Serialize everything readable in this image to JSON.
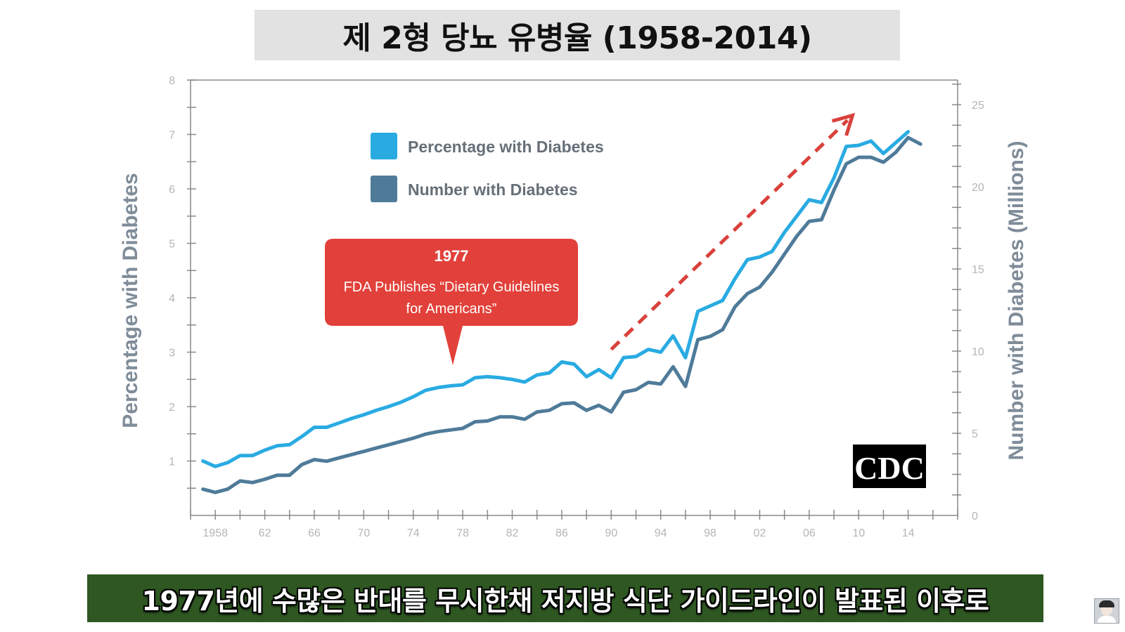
{
  "title": "제 2형 당뇨 유병율 (1958-2014)",
  "subtitle": "1977년에 수많은 반대를 무시한채 저지방 식단 가이드라인이 발표된 이후로",
  "colors": {
    "percentage_series": "#29abe2",
    "number_series": "#4f7b99",
    "callout": "#e2403a",
    "trend_arrow": "#d9413b",
    "title_banner": "#e2e2e2",
    "subtitle_bar": "#2e5722"
  },
  "logo": {
    "text": "CDC"
  },
  "chart_data": {
    "type": "line",
    "title": "",
    "xlabel": "",
    "ylabel_left": "Percentage with Diabetes",
    "ylabel_right": "Number with Diabetes (Millions)",
    "ylim_left": [
      0,
      8
    ],
    "ylim_right": [
      0,
      26.5
    ],
    "left_ticks": [
      1,
      2,
      3,
      4,
      5,
      6,
      7,
      8
    ],
    "right_ticks": [
      0,
      5,
      10,
      15,
      20,
      25
    ],
    "x_ticks": [
      {
        "value": 1958,
        "label": "1958"
      },
      {
        "value": 1962,
        "label": "62"
      },
      {
        "value": 1966,
        "label": "66"
      },
      {
        "value": 1970,
        "label": "70"
      },
      {
        "value": 1974,
        "label": "74"
      },
      {
        "value": 1978,
        "label": "78"
      },
      {
        "value": 1982,
        "label": "82"
      },
      {
        "value": 1986,
        "label": "86"
      },
      {
        "value": 1990,
        "label": "90"
      },
      {
        "value": 1994,
        "label": "94"
      },
      {
        "value": 1998,
        "label": "98"
      },
      {
        "value": 2002,
        "label": "02"
      },
      {
        "value": 2006,
        "label": "06"
      },
      {
        "value": 2010,
        "label": "10"
      },
      {
        "value": 2014,
        "label": "14"
      }
    ],
    "xlim": [
      1956,
      2018
    ],
    "grid": false,
    "legend_position": "top-left",
    "series": [
      {
        "name": "Percentage with Diabetes",
        "axis": "left",
        "x": [
          1957,
          1958,
          1959,
          1960,
          1961,
          1962,
          1963,
          1964,
          1965,
          1966,
          1967,
          1968,
          1969,
          1970,
          1971,
          1972,
          1973,
          1974,
          1975,
          1976,
          1977,
          1978,
          1979,
          1980,
          1981,
          1982,
          1983,
          1984,
          1985,
          1986,
          1987,
          1988,
          1989,
          1990,
          1991,
          1992,
          1993,
          1994,
          1995,
          1996,
          1997,
          1998,
          1999,
          2000,
          2001,
          2002,
          2003,
          2004,
          2005,
          2006,
          2007,
          2008,
          2009,
          2010,
          2011,
          2012,
          2013,
          2014,
          2015
        ],
        "values": [
          1.0,
          0.9,
          0.97,
          1.1,
          1.1,
          1.2,
          1.28,
          1.3,
          1.45,
          1.62,
          1.62,
          1.7,
          1.78,
          1.85,
          1.93,
          2.0,
          2.08,
          2.18,
          2.3,
          2.35,
          2.38,
          2.4,
          2.53,
          2.55,
          2.53,
          2.5,
          2.45,
          2.58,
          2.62,
          2.82,
          2.78,
          2.55,
          2.68,
          2.53,
          2.9,
          2.92,
          3.05,
          3.0,
          3.3,
          2.9,
          3.75,
          3.85,
          3.95,
          4.35,
          4.7,
          4.75,
          4.85,
          5.2,
          5.5,
          5.8,
          5.75,
          6.2,
          6.78,
          6.8,
          6.88,
          6.65,
          6.85,
          7.05,
          null
        ]
      },
      {
        "name": "Number with Diabetes",
        "axis": "right",
        "x": [
          1957,
          1958,
          1959,
          1960,
          1961,
          1962,
          1963,
          1964,
          1965,
          1966,
          1967,
          1968,
          1969,
          1970,
          1971,
          1972,
          1973,
          1974,
          1975,
          1976,
          1977,
          1978,
          1979,
          1980,
          1981,
          1982,
          1983,
          1984,
          1985,
          1986,
          1987,
          1988,
          1989,
          1990,
          1991,
          1992,
          1993,
          1994,
          1995,
          1996,
          1997,
          1998,
          1999,
          2000,
          2001,
          2002,
          2003,
          2004,
          2005,
          2006,
          2007,
          2008,
          2009,
          2010,
          2011,
          2012,
          2013,
          2014,
          2015
        ],
        "values": [
          1.6,
          1.4,
          1.6,
          2.1,
          2.0,
          2.2,
          2.45,
          2.45,
          3.1,
          3.4,
          3.3,
          3.5,
          3.7,
          3.9,
          4.1,
          4.3,
          4.5,
          4.7,
          4.95,
          5.1,
          5.2,
          5.3,
          5.7,
          5.75,
          6.0,
          6.0,
          5.85,
          6.3,
          6.4,
          6.8,
          6.85,
          6.4,
          6.7,
          6.3,
          7.5,
          7.65,
          8.1,
          8.0,
          9.05,
          7.85,
          10.7,
          10.9,
          11.3,
          12.7,
          13.5,
          13.9,
          14.8,
          15.9,
          17.0,
          17.9,
          18.0,
          19.8,
          21.4,
          21.8,
          21.8,
          21.5,
          22.1,
          23.0,
          22.6
        ]
      }
    ],
    "annotations": [
      {
        "year_label": "1977",
        "text_lines": [
          "FDA Publishes “Dietary Guidelines",
          "for Americans”"
        ],
        "points_to_year": 1977
      }
    ],
    "trend_arrow": {
      "from": [
        1990,
        3.05
      ],
      "to": [
        2009.5,
        7.35
      ],
      "style": "dashed"
    }
  }
}
